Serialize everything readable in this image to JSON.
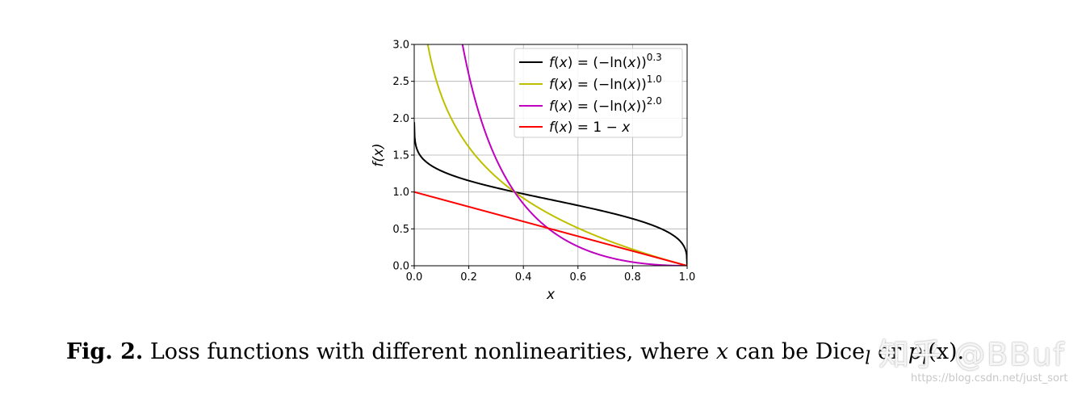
{
  "chart_data": {
    "type": "line",
    "title": "",
    "xlabel": "x",
    "ylabel": "f(x)",
    "xlim": [
      0.0,
      1.0
    ],
    "ylim": [
      0.0,
      3.0
    ],
    "x_ticks": [
      "0.0",
      "0.2",
      "0.4",
      "0.6",
      "0.8",
      "1.0"
    ],
    "y_ticks": [
      "0.0",
      "0.5",
      "1.0",
      "1.5",
      "2.0",
      "2.5",
      "3.0"
    ],
    "grid": true,
    "legend_position": "top-right",
    "series": [
      {
        "name": "f(x) = (−ln(x))^0.3",
        "color": "#000000",
        "formula": "(-ln(x))^0.3",
        "x": [
          0.001,
          0.01,
          0.05,
          0.1,
          0.2,
          0.3,
          0.4,
          0.5,
          0.6,
          0.7,
          0.8,
          0.9,
          0.95,
          0.99,
          1.0
        ],
        "y": [
          1.79,
          1.58,
          1.37,
          1.28,
          1.17,
          1.09,
          0.97,
          0.9,
          0.82,
          0.73,
          0.64,
          0.51,
          0.41,
          0.25,
          0.0
        ]
      },
      {
        "name": "f(x) = (−ln(x))^1.0",
        "color": "#bfbf00",
        "formula": "(-ln(x))^1.0",
        "x": [
          0.05,
          0.1,
          0.2,
          0.3,
          0.4,
          0.5,
          0.6,
          0.7,
          0.8,
          0.9,
          1.0
        ],
        "y": [
          3.0,
          2.3,
          1.61,
          1.2,
          0.92,
          0.69,
          0.51,
          0.36,
          0.22,
          0.11,
          0.0
        ]
      },
      {
        "name": "f(x) = (−ln(x))^2.0",
        "color": "#bf00bf",
        "formula": "(-ln(x))^2.0",
        "x": [
          0.18,
          0.2,
          0.3,
          0.4,
          0.5,
          0.6,
          0.7,
          0.8,
          0.9,
          1.0
        ],
        "y": [
          3.0,
          2.59,
          1.45,
          0.84,
          0.48,
          0.26,
          0.13,
          0.05,
          0.01,
          0.0
        ]
      },
      {
        "name": "f(x) = 1 − x",
        "color": "#ff0000",
        "formula": "1-x",
        "x": [
          0.0,
          1.0
        ],
        "y": [
          1.0,
          0.0
        ]
      }
    ]
  },
  "legend": [
    {
      "pre": "f",
      "mid": "(",
      "var": "x",
      "post": ") = (−ln(",
      "var2": "x",
      "post2": "))",
      "sup": "0.3"
    },
    {
      "pre": "f",
      "mid": "(",
      "var": "x",
      "post": ") = (−ln(",
      "var2": "x",
      "post2": "))",
      "sup": "1.0"
    },
    {
      "pre": "f",
      "mid": "(",
      "var": "x",
      "post": ") = (−ln(",
      "var2": "x",
      "post2": "))",
      "sup": "2.0"
    },
    {
      "pre": "f",
      "mid": "(",
      "var": "x",
      "post": ") = 1 − ",
      "var2": "x",
      "post2": "",
      "sup": ""
    }
  ],
  "caption": {
    "label": "Fig. 2.",
    "text_before": " Loss functions with different nonlinearities, where ",
    "var_x": "x",
    "text_mid": " can be Dice",
    "sub_l": "l",
    "text_or": " or ",
    "var_p": "p",
    "sub_p": "l",
    "text_end": "(x)."
  },
  "watermark": {
    "text": "知乎 @BBuf",
    "url": "https://blog.csdn.net/just_sort"
  }
}
